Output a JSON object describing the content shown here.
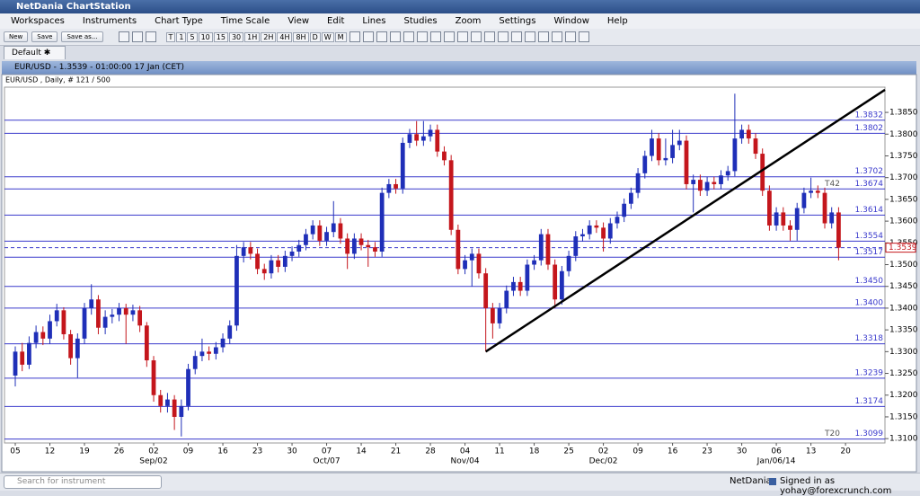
{
  "app": {
    "title": "NetDania ChartStation",
    "menu": [
      "Workspaces",
      "Instruments",
      "Chart Type",
      "Time Scale",
      "View",
      "Edit",
      "Lines",
      "Studies",
      "Zoom",
      "Settings",
      "Window",
      "Help"
    ],
    "buttons": [
      "New",
      "Save",
      "Save as..."
    ],
    "periods": [
      "T",
      "1",
      "5",
      "10",
      "15",
      "30",
      "1H",
      "2H",
      "4H",
      "8H",
      "D",
      "W",
      "M"
    ],
    "tab": "Default",
    "window_title": "EUR/USD - 1.3539 - 01:00:00 17 Jan (CET)",
    "footer": {
      "search": "Search for instrument",
      "brand": "NetDania",
      "signed_in": "Signed in as yohay@forexcrunch.com"
    }
  },
  "chart_data": {
    "type": "candlestick",
    "subtitle": "EUR/USD , Daily, # 121 / 500",
    "up_color": "#1f2fb8",
    "down_color": "#c4161c",
    "level_color": "#3a3acc",
    "candles": [
      [
        1.3245,
        1.3312,
        1.322,
        1.33
      ],
      [
        1.33,
        1.332,
        1.3255,
        1.327
      ],
      [
        1.327,
        1.3335,
        1.326,
        1.332
      ],
      [
        1.332,
        1.336,
        1.3308,
        1.3345
      ],
      [
        1.3345,
        1.3358,
        1.3315,
        1.333
      ],
      [
        1.333,
        1.3385,
        1.3318,
        1.337
      ],
      [
        1.337,
        1.341,
        1.3358,
        1.3395
      ],
      [
        1.3395,
        1.3402,
        1.3328,
        1.334
      ],
      [
        1.334,
        1.335,
        1.327,
        1.3285
      ],
      [
        1.3285,
        1.3342,
        1.324,
        1.333
      ],
      [
        1.333,
        1.3412,
        1.3318,
        1.34
      ],
      [
        1.34,
        1.3455,
        1.3385,
        1.342
      ],
      [
        1.342,
        1.343,
        1.334,
        1.3355
      ],
      [
        1.3355,
        1.3395,
        1.334,
        1.338
      ],
      [
        1.338,
        1.3398,
        1.3365,
        1.3385
      ],
      [
        1.3385,
        1.3412,
        1.337,
        1.34
      ],
      [
        1.34,
        1.341,
        1.3318,
        1.3385
      ],
      [
        1.3385,
        1.3408,
        1.337,
        1.3395
      ],
      [
        1.3395,
        1.3405,
        1.3345,
        1.336
      ],
      [
        1.336,
        1.3368,
        1.3265,
        1.328
      ],
      [
        1.328,
        1.329,
        1.3185,
        1.32
      ],
      [
        1.32,
        1.3212,
        1.316,
        1.3175
      ],
      [
        1.3175,
        1.3205,
        1.316,
        1.319
      ],
      [
        1.319,
        1.32,
        1.312,
        1.315
      ],
      [
        1.315,
        1.319,
        1.3105,
        1.3175
      ],
      [
        1.3175,
        1.3272,
        1.3165,
        1.326
      ],
      [
        1.326,
        1.3302,
        1.3248,
        1.329
      ],
      [
        1.329,
        1.333,
        1.3278,
        1.33
      ],
      [
        1.33,
        1.3312,
        1.328,
        1.3295
      ],
      [
        1.3295,
        1.3322,
        1.3282,
        1.331
      ],
      [
        1.331,
        1.3342,
        1.3298,
        1.333
      ],
      [
        1.333,
        1.3372,
        1.3318,
        1.336
      ],
      [
        1.336,
        1.3545,
        1.3348,
        1.352
      ],
      [
        1.352,
        1.3552,
        1.3505,
        1.354
      ],
      [
        1.354,
        1.3552,
        1.3512,
        1.3525
      ],
      [
        1.3525,
        1.3537,
        1.3478,
        1.349
      ],
      [
        1.349,
        1.3502,
        1.3465,
        1.348
      ],
      [
        1.348,
        1.3522,
        1.3468,
        1.351
      ],
      [
        1.351,
        1.3522,
        1.3482,
        1.3495
      ],
      [
        1.3495,
        1.3532,
        1.3483,
        1.352
      ],
      [
        1.352,
        1.3542,
        1.3508,
        1.353
      ],
      [
        1.353,
        1.3557,
        1.3518,
        1.3545
      ],
      [
        1.3545,
        1.3582,
        1.3533,
        1.357
      ],
      [
        1.357,
        1.3602,
        1.3558,
        1.359
      ],
      [
        1.359,
        1.3602,
        1.3543,
        1.3555
      ],
      [
        1.3555,
        1.3587,
        1.3543,
        1.3575
      ],
      [
        1.3575,
        1.3646,
        1.3563,
        1.3595
      ],
      [
        1.3595,
        1.3607,
        1.3548,
        1.356
      ],
      [
        1.356,
        1.3572,
        1.349,
        1.3525
      ],
      [
        1.3525,
        1.3572,
        1.3513,
        1.356
      ],
      [
        1.356,
        1.3572,
        1.3533,
        1.3545
      ],
      [
        1.3545,
        1.3557,
        1.3495,
        1.354
      ],
      [
        1.354,
        1.3552,
        1.3518,
        1.353
      ],
      [
        1.353,
        1.3677,
        1.3518,
        1.3665
      ],
      [
        1.3665,
        1.3697,
        1.3653,
        1.3685
      ],
      [
        1.3685,
        1.3697,
        1.3663,
        1.3675
      ],
      [
        1.3675,
        1.3792,
        1.3663,
        1.378
      ],
      [
        1.378,
        1.3812,
        1.3768,
        1.38
      ],
      [
        1.38,
        1.383,
        1.3773,
        1.3785
      ],
      [
        1.3785,
        1.383,
        1.3773,
        1.3795
      ],
      [
        1.3795,
        1.3822,
        1.3783,
        1.381
      ],
      [
        1.381,
        1.3822,
        1.3748,
        1.376
      ],
      [
        1.376,
        1.3772,
        1.3728,
        1.374
      ],
      [
        1.374,
        1.3752,
        1.3568,
        1.358
      ],
      [
        1.358,
        1.3592,
        1.3478,
        1.349
      ],
      [
        1.349,
        1.3522,
        1.3478,
        1.351
      ],
      [
        1.351,
        1.3537,
        1.345,
        1.3525
      ],
      [
        1.3525,
        1.3537,
        1.3468,
        1.348
      ],
      [
        1.348,
        1.3492,
        1.33,
        1.34
      ],
      [
        1.34,
        1.3412,
        1.333,
        1.3365
      ],
      [
        1.3365,
        1.3412,
        1.3353,
        1.34
      ],
      [
        1.34,
        1.3452,
        1.3388,
        1.344
      ],
      [
        1.344,
        1.3472,
        1.3428,
        1.346
      ],
      [
        1.346,
        1.3472,
        1.3428,
        1.344
      ],
      [
        1.344,
        1.3512,
        1.3428,
        1.35
      ],
      [
        1.35,
        1.3522,
        1.3488,
        1.351
      ],
      [
        1.351,
        1.3582,
        1.3498,
        1.357
      ],
      [
        1.357,
        1.3582,
        1.3488,
        1.35
      ],
      [
        1.35,
        1.3512,
        1.34,
        1.342
      ],
      [
        1.342,
        1.3497,
        1.3408,
        1.3485
      ],
      [
        1.3485,
        1.3532,
        1.3473,
        1.352
      ],
      [
        1.352,
        1.3577,
        1.3508,
        1.3565
      ],
      [
        1.3565,
        1.3582,
        1.3553,
        1.357
      ],
      [
        1.357,
        1.3602,
        1.3558,
        1.359
      ],
      [
        1.359,
        1.3602,
        1.3573,
        1.3585
      ],
      [
        1.3585,
        1.3597,
        1.353,
        1.356
      ],
      [
        1.356,
        1.3607,
        1.3548,
        1.3595
      ],
      [
        1.3595,
        1.3622,
        1.3583,
        1.361
      ],
      [
        1.361,
        1.3652,
        1.3598,
        1.364
      ],
      [
        1.364,
        1.3677,
        1.3628,
        1.3665
      ],
      [
        1.3665,
        1.3722,
        1.3653,
        1.371
      ],
      [
        1.371,
        1.3762,
        1.3698,
        1.375
      ],
      [
        1.375,
        1.381,
        1.3738,
        1.379
      ],
      [
        1.379,
        1.3802,
        1.3728,
        1.374
      ],
      [
        1.374,
        1.379,
        1.3728,
        1.3745
      ],
      [
        1.3745,
        1.381,
        1.3733,
        1.3775
      ],
      [
        1.3775,
        1.381,
        1.3763,
        1.3785
      ],
      [
        1.3785,
        1.3797,
        1.3673,
        1.3685
      ],
      [
        1.3685,
        1.3707,
        1.362,
        1.3695
      ],
      [
        1.3695,
        1.3707,
        1.3658,
        1.367
      ],
      [
        1.367,
        1.3702,
        1.3658,
        1.369
      ],
      [
        1.369,
        1.3702,
        1.3673,
        1.3685
      ],
      [
        1.3685,
        1.3717,
        1.3673,
        1.3705
      ],
      [
        1.3705,
        1.3727,
        1.3693,
        1.3715
      ],
      [
        1.3715,
        1.3893,
        1.3703,
        1.379
      ],
      [
        1.379,
        1.3822,
        1.3778,
        1.381
      ],
      [
        1.381,
        1.3822,
        1.3778,
        1.379
      ],
      [
        1.379,
        1.3802,
        1.3743,
        1.3755
      ],
      [
        1.3755,
        1.3767,
        1.3658,
        1.367
      ],
      [
        1.367,
        1.3682,
        1.3578,
        1.359
      ],
      [
        1.359,
        1.3632,
        1.3578,
        1.362
      ],
      [
        1.362,
        1.3632,
        1.3578,
        1.359
      ],
      [
        1.359,
        1.3602,
        1.3555,
        1.358
      ],
      [
        1.358,
        1.3642,
        1.3555,
        1.363
      ],
      [
        1.363,
        1.3677,
        1.3618,
        1.3665
      ],
      [
        1.3665,
        1.37,
        1.3653,
        1.367
      ],
      [
        1.367,
        1.3682,
        1.3653,
        1.3665
      ],
      [
        1.3665,
        1.3677,
        1.3583,
        1.3595
      ],
      [
        1.3595,
        1.3632,
        1.3583,
        1.362
      ],
      [
        1.362,
        1.3632,
        1.351,
        1.3539
      ]
    ],
    "xlim": [
      -1.56,
      125.7
    ],
    "xticks": [
      {
        "value": 0,
        "label": "05"
      },
      {
        "value": 5,
        "label": "12"
      },
      {
        "value": 10,
        "label": "19"
      },
      {
        "value": 15,
        "label": "26"
      },
      {
        "value": 20,
        "label": "02"
      },
      {
        "value": 25,
        "label": "09"
      },
      {
        "value": 30,
        "label": "16"
      },
      {
        "value": 35,
        "label": "23"
      },
      {
        "value": 40,
        "label": "30"
      },
      {
        "value": 45,
        "label": "07"
      },
      {
        "value": 50,
        "label": "14"
      },
      {
        "value": 55,
        "label": "21"
      },
      {
        "value": 60,
        "label": "28"
      },
      {
        "value": 65,
        "label": "04"
      },
      {
        "value": 70,
        "label": "11"
      },
      {
        "value": 75,
        "label": "18"
      },
      {
        "value": 80,
        "label": "25"
      },
      {
        "value": 85,
        "label": "02"
      },
      {
        "value": 90,
        "label": "09"
      },
      {
        "value": 95,
        "label": "16"
      },
      {
        "value": 100,
        "label": "23"
      },
      {
        "value": 105,
        "label": "30"
      },
      {
        "value": 110,
        "label": "06"
      },
      {
        "value": 115,
        "label": "13"
      },
      {
        "value": 120,
        "label": "20"
      }
    ],
    "month_labels": [
      {
        "value": 20,
        "label": "Sep/02"
      },
      {
        "value": 45,
        "label": "Oct/07"
      },
      {
        "value": 65,
        "label": "Nov/04"
      },
      {
        "value": 85,
        "label": "Dec/02"
      },
      {
        "value": 110,
        "label": "Jan/06/14"
      }
    ],
    "ylim": [
      1.309,
      1.3908
    ],
    "yticks": [
      {
        "value": 1.31,
        "label": "1.3100"
      },
      {
        "value": 1.315,
        "label": "1.3150"
      },
      {
        "value": 1.32,
        "label": "1.3200"
      },
      {
        "value": 1.325,
        "label": "1.3250"
      },
      {
        "value": 1.33,
        "label": "1.3300"
      },
      {
        "value": 1.335,
        "label": "1.3350"
      },
      {
        "value": 1.34,
        "label": "1.3400"
      },
      {
        "value": 1.345,
        "label": "1.3450"
      },
      {
        "value": 1.35,
        "label": "1.3500"
      },
      {
        "value": 1.355,
        "label": "1.3550"
      },
      {
        "value": 1.36,
        "label": "1.3600"
      },
      {
        "value": 1.365,
        "label": "1.3650"
      },
      {
        "value": 1.37,
        "label": "1.3700"
      },
      {
        "value": 1.375,
        "label": "1.3750"
      },
      {
        "value": 1.38,
        "label": "1.3800"
      },
      {
        "value": 1.385,
        "label": "1.3850"
      }
    ],
    "levels": [
      {
        "value": 1.3832,
        "label": "1.3832"
      },
      {
        "value": 1.3802,
        "label": "1.3802"
      },
      {
        "value": 1.3702,
        "label": "1.3702"
      },
      {
        "value": 1.3674,
        "label": "1.3674"
      },
      {
        "value": 1.3614,
        "label": "1.3614"
      },
      {
        "value": 1.3554,
        "label": "1.3554"
      },
      {
        "value": 1.3517,
        "label": "1.3517"
      },
      {
        "value": 1.345,
        "label": "1.3450"
      },
      {
        "value": 1.34,
        "label": "1.3400"
      },
      {
        "value": 1.3318,
        "label": "1.3318"
      },
      {
        "value": 1.3239,
        "label": "1.3239"
      },
      {
        "value": 1.3174,
        "label": "1.3174"
      },
      {
        "value": 1.3099,
        "label": "1.3099"
      }
    ],
    "level_tags": [
      {
        "value": 1.3674,
        "label": "T42"
      },
      {
        "value": 1.3099,
        "label": "T20"
      }
    ],
    "last": {
      "value": 1.3539,
      "label": "1.3539"
    },
    "trendline": {
      "x": [
        68,
        125.7
      ],
      "y": [
        1.33,
        1.3902
      ]
    }
  }
}
